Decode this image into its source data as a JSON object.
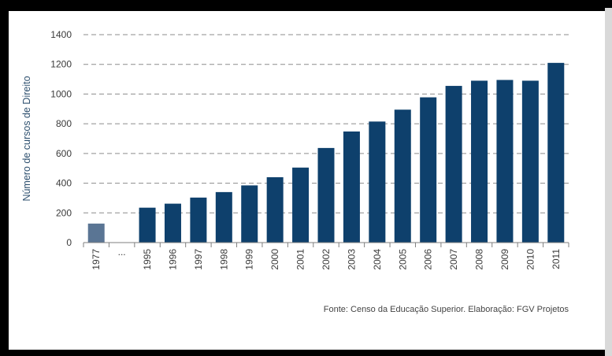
{
  "chart_data": {
    "type": "bar",
    "ylabel": "Número de cursos de Direito",
    "xlabel": "",
    "ylim": [
      0,
      1400
    ],
    "yticks": [
      0,
      200,
      400,
      600,
      800,
      1000,
      1200,
      1400
    ],
    "grid": "horizontal-dashed",
    "categories": [
      "1977",
      "...",
      "1995",
      "1996",
      "1997",
      "1998",
      "1999",
      "2000",
      "2001",
      "2002",
      "2003",
      "2004",
      "2005",
      "2006",
      "2007",
      "2008",
      "2009",
      "2010",
      "2011"
    ],
    "values": [
      128,
      null,
      235,
      262,
      303,
      340,
      385,
      440,
      505,
      637,
      748,
      815,
      895,
      978,
      1055,
      1090,
      1095,
      1090,
      1210
    ],
    "colors": {
      "first_bar": "#5a7594",
      "bars": "#0e406c",
      "grid": "#8c8c8c",
      "axis": "#7f7f7f"
    }
  },
  "source_note": "Fonte: Censo da Educação Superior. Elaboração: FGV Projetos"
}
